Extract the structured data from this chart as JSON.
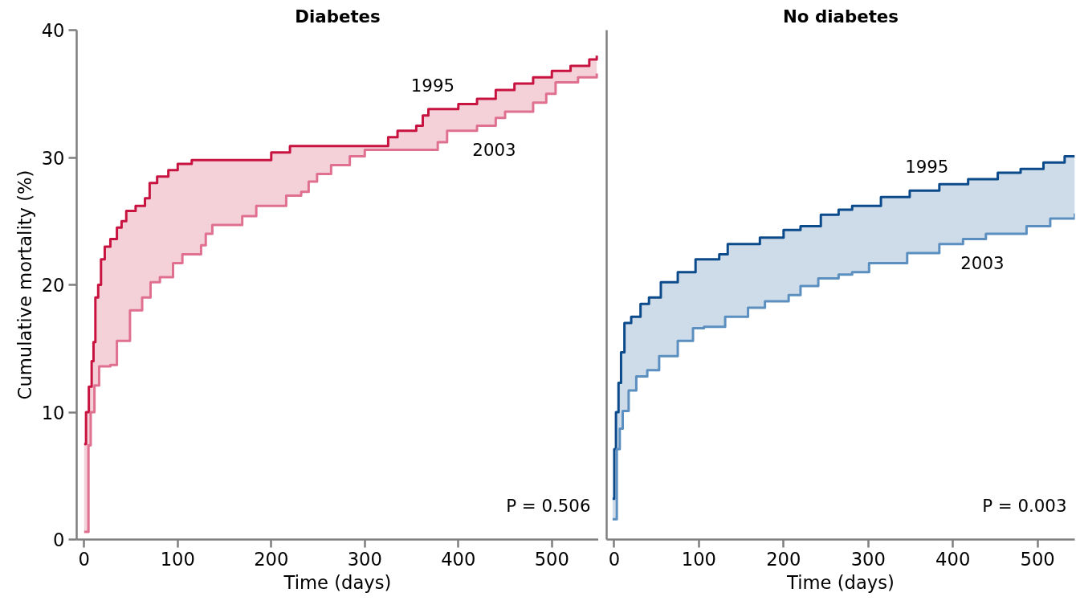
{
  "chart_data": [
    {
      "type": "step",
      "title": "Diabetes",
      "xlabel": "Time (days)",
      "ylabel": "Cumulative mortality (%)",
      "xlim": [
        -8,
        550
      ],
      "ylim": [
        0,
        40
      ],
      "xticks": [
        0,
        100,
        200,
        300,
        400,
        500
      ],
      "yticks": [
        0,
        10,
        20,
        30,
        40
      ],
      "grid": false,
      "annotations": [
        "P = 0.506"
      ],
      "x": [
        0,
        2,
        4.6,
        5,
        7,
        8,
        10,
        11,
        12,
        15,
        16,
        18,
        22,
        28,
        35,
        40,
        45,
        49,
        55,
        62,
        65,
        70,
        71,
        78,
        81,
        90,
        95,
        100,
        105,
        115,
        125,
        130,
        137,
        169,
        184,
        200,
        216,
        220,
        232,
        240,
        249,
        264,
        284,
        300,
        325,
        335,
        355,
        362,
        368,
        378,
        388,
        400,
        420,
        440,
        450,
        460,
        480,
        494,
        500,
        504,
        520,
        528,
        540,
        548
      ],
      "series": [
        {
          "name": "1995",
          "color": "#c8123f",
          "values": [
            7.5,
            10,
            10,
            12,
            12,
            14,
            15.5,
            15.5,
            19,
            20,
            20,
            22,
            23,
            23.6,
            24.5,
            25,
            25.8,
            25.8,
            26.2,
            26.2,
            26.8,
            28,
            28,
            28.5,
            28.5,
            29,
            29,
            29.5,
            29.5,
            29.8,
            29.8,
            29.8,
            29.8,
            29.8,
            29.8,
            30.4,
            30.4,
            30.9,
            30.9,
            30.9,
            30.9,
            30.9,
            30.9,
            30.9,
            31.6,
            32.1,
            32.5,
            33.3,
            33.8,
            33.8,
            33.8,
            34.2,
            34.6,
            35.3,
            35.3,
            35.8,
            36.3,
            36.3,
            36.8,
            36.8,
            37.2,
            37.2,
            37.7,
            38
          ],
          "lower": [
            0.6,
            0.6,
            7.4,
            7.4,
            10,
            10,
            10,
            12.1,
            12.1,
            12.1,
            13.6,
            13.6,
            13.6,
            13.7,
            15.6,
            15.6,
            15.6,
            18,
            18,
            19,
            19,
            19,
            20.2,
            20.2,
            20.6,
            20.6,
            21.7,
            21.7,
            22.4,
            22.4,
            23.1,
            24,
            24.7,
            25.4,
            26.2,
            26.2,
            27,
            27,
            27.3,
            28.1,
            28.7,
            29.4,
            30.1,
            30.6,
            30.6,
            30.6,
            30.6,
            30.6,
            30.6,
            31.2,
            32.1,
            32.1,
            32.5,
            33.1,
            33.6,
            33.6,
            34.3,
            35,
            35,
            35.9,
            35.9,
            36.3,
            36.3,
            36.6
          ],
          "upper": [
            7.5,
            10,
            10,
            12,
            12,
            14,
            15.5,
            15.5,
            19,
            20,
            20,
            22,
            23,
            23.6,
            24.5,
            25,
            25.8,
            25.8,
            26.2,
            26.2,
            26.8,
            28,
            28,
            28.5,
            28.5,
            29,
            29,
            29.5,
            29.5,
            29.8,
            29.8,
            29.8,
            29.8,
            29.8,
            29.8,
            30.4,
            30.4,
            30.9,
            30.9,
            30.9,
            30.9,
            30.9,
            30.9,
            30.9,
            31.6,
            32.1,
            32.5,
            33.3,
            33.8,
            33.8,
            33.8,
            34.2,
            34.6,
            35.3,
            35.3,
            35.8,
            36.3,
            36.3,
            36.8,
            36.8,
            37.2,
            37.2,
            37.7,
            38
          ]
        },
        {
          "name": "2003",
          "color": "#e07090",
          "values": [
            0.6,
            0.6,
            7.4,
            7.4,
            10,
            10,
            10,
            12.1,
            12.1,
            12.1,
            13.6,
            13.6,
            13.6,
            13.7,
            15.6,
            15.6,
            15.6,
            18,
            18,
            19,
            19,
            19,
            20.2,
            20.2,
            20.6,
            20.6,
            21.7,
            21.7,
            22.4,
            22.4,
            23.1,
            24,
            24.7,
            25.4,
            26.2,
            26.2,
            27,
            27,
            27.3,
            28.1,
            28.7,
            29.4,
            30.1,
            30.6,
            30.6,
            30.6,
            30.6,
            30.6,
            30.6,
            31.2,
            32.1,
            32.1,
            32.5,
            33.1,
            33.6,
            33.6,
            34.3,
            35,
            35,
            35.9,
            35.9,
            36.3,
            36.3,
            36.6
          ]
        }
      ]
    },
    {
      "type": "step",
      "title": "No diabetes",
      "xlabel": "Time (days)",
      "xlim": [
        -9,
        544
      ],
      "ylim": [
        0,
        40
      ],
      "xticks": [
        0,
        100,
        200,
        300,
        400,
        500
      ],
      "yticks": [
        0,
        10,
        20,
        30,
        40
      ],
      "tick_labels": "x",
      "grid": false,
      "annotations": [
        "P = 0.003"
      ],
      "x": [
        -2,
        0,
        2,
        3,
        5,
        6.5,
        8,
        10,
        12,
        17,
        20,
        26,
        31,
        39,
        41,
        53,
        55,
        75,
        93,
        96,
        106,
        124,
        131,
        134,
        158,
        172,
        178,
        200,
        206,
        220,
        241,
        244,
        265,
        281,
        301,
        315,
        346,
        349,
        384,
        412,
        418,
        439,
        453,
        480,
        487,
        507,
        515,
        532,
        544
      ],
      "series": [
        {
          "name": "1995",
          "color": "#0b4a8b",
          "values": [
            3.2,
            7.1,
            10,
            10,
            12.3,
            12.3,
            14.7,
            14.7,
            17,
            17,
            17.5,
            17.5,
            18.5,
            18.5,
            19,
            19,
            20.2,
            21,
            21,
            22,
            22,
            22.4,
            22.4,
            23.2,
            23.2,
            23.7,
            23.7,
            24.3,
            24.3,
            24.6,
            24.6,
            25.5,
            25.9,
            26.2,
            26.2,
            26.9,
            26.9,
            27.4,
            27.9,
            27.9,
            28.3,
            28.3,
            28.8,
            29.1,
            29.1,
            29.6,
            29.6,
            30.1,
            30.1
          ],
          "lower": [
            1.6,
            1.6,
            1.6,
            7.1,
            7.1,
            8.7,
            8.7,
            10.1,
            10.1,
            11.7,
            11.7,
            12.8,
            12.8,
            13.3,
            13.3,
            14.4,
            14.4,
            15.6,
            16.6,
            16.6,
            16.7,
            16.7,
            17.5,
            17.5,
            18.2,
            18.2,
            18.7,
            18.7,
            19.2,
            19.9,
            20.5,
            20.5,
            20.8,
            21,
            21.7,
            21.7,
            22.5,
            22.5,
            23.2,
            23.6,
            23.6,
            24,
            24,
            24,
            24.6,
            24.6,
            25.2,
            25.2,
            25.6
          ],
          "upper": [
            3.2,
            7.1,
            10,
            10,
            12.3,
            12.3,
            14.7,
            14.7,
            17,
            17,
            17.5,
            17.5,
            18.5,
            18.5,
            19,
            19,
            20.2,
            21,
            21,
            22,
            22,
            22.4,
            22.4,
            23.2,
            23.2,
            23.7,
            23.7,
            24.3,
            24.3,
            24.6,
            24.6,
            25.5,
            25.9,
            26.2,
            26.2,
            26.9,
            26.9,
            27.4,
            27.9,
            27.9,
            28.3,
            28.3,
            28.8,
            29.1,
            29.1,
            29.6,
            29.6,
            30.1,
            30.1
          ]
        },
        {
          "name": "2003",
          "color": "#5b8fc0",
          "values": [
            1.6,
            1.6,
            1.6,
            7.1,
            7.1,
            8.7,
            8.7,
            10.1,
            10.1,
            11.7,
            11.7,
            12.8,
            12.8,
            13.3,
            13.3,
            14.4,
            14.4,
            15.6,
            16.6,
            16.6,
            16.7,
            16.7,
            17.5,
            17.5,
            18.2,
            18.2,
            18.7,
            18.7,
            19.2,
            19.9,
            20.5,
            20.5,
            20.8,
            21,
            21.7,
            21.7,
            22.5,
            22.5,
            23.2,
            23.6,
            23.6,
            24,
            24,
            24,
            24.6,
            24.6,
            25.2,
            25.2,
            25.6
          ]
        }
      ]
    }
  ]
}
